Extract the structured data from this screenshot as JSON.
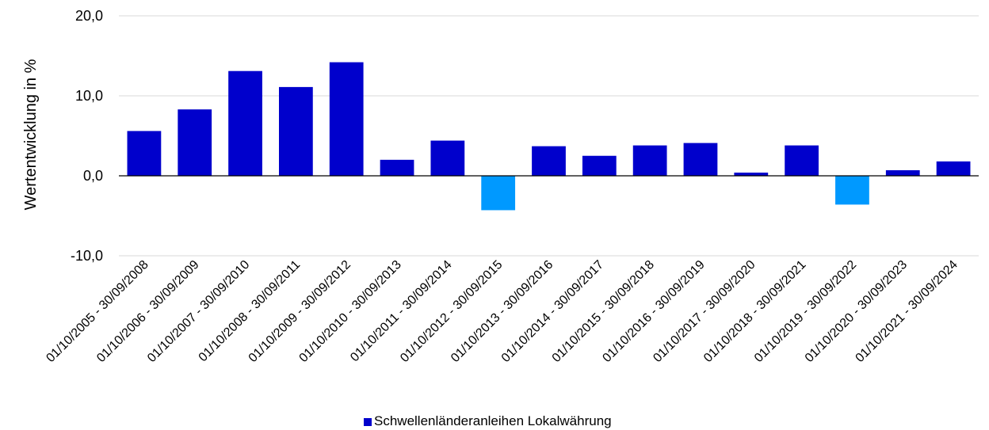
{
  "chart_data": {
    "type": "bar",
    "ylabel": "Wertentwicklung in %",
    "ylim": [
      -10,
      20
    ],
    "yticks": [
      -10,
      0,
      10,
      20
    ],
    "ytick_labels": [
      "-10,0",
      "0,0",
      "10,0",
      "20,0"
    ],
    "grid": true,
    "legend_position": "bottom-center",
    "categories": [
      "01/10/2005 - 30/09/2008",
      "01/10/2006 - 30/09/2009",
      "01/10/2007 - 30/09/2010",
      "01/10/2008 - 30/09/2011",
      "01/10/2009 - 30/09/2012",
      "01/10/2010 - 30/09/2013",
      "01/10/2011 - 30/09/2014",
      "01/10/2012 - 30/09/2015",
      "01/10/2013 - 30/09/2016",
      "01/10/2014 - 30/09/2017",
      "01/10/2015 - 30/09/2018",
      "01/10/2016 - 30/09/2019",
      "01/10/2017 - 30/09/2020",
      "01/10/2018 - 30/09/2021",
      "01/10/2019 - 30/09/2022",
      "01/10/2020 - 30/09/2023",
      "01/10/2021 - 30/09/2024"
    ],
    "series": [
      {
        "name": "Schwellenländeranleihen Lokalwährung",
        "values": [
          5.6,
          8.3,
          13.1,
          11.1,
          14.2,
          2.0,
          4.4,
          -4.3,
          3.7,
          2.5,
          3.8,
          4.1,
          0.4,
          3.8,
          -3.6,
          0.7,
          1.8
        ]
      }
    ],
    "colors": {
      "positive": "#0000cc",
      "negative": "#0099ff"
    }
  }
}
